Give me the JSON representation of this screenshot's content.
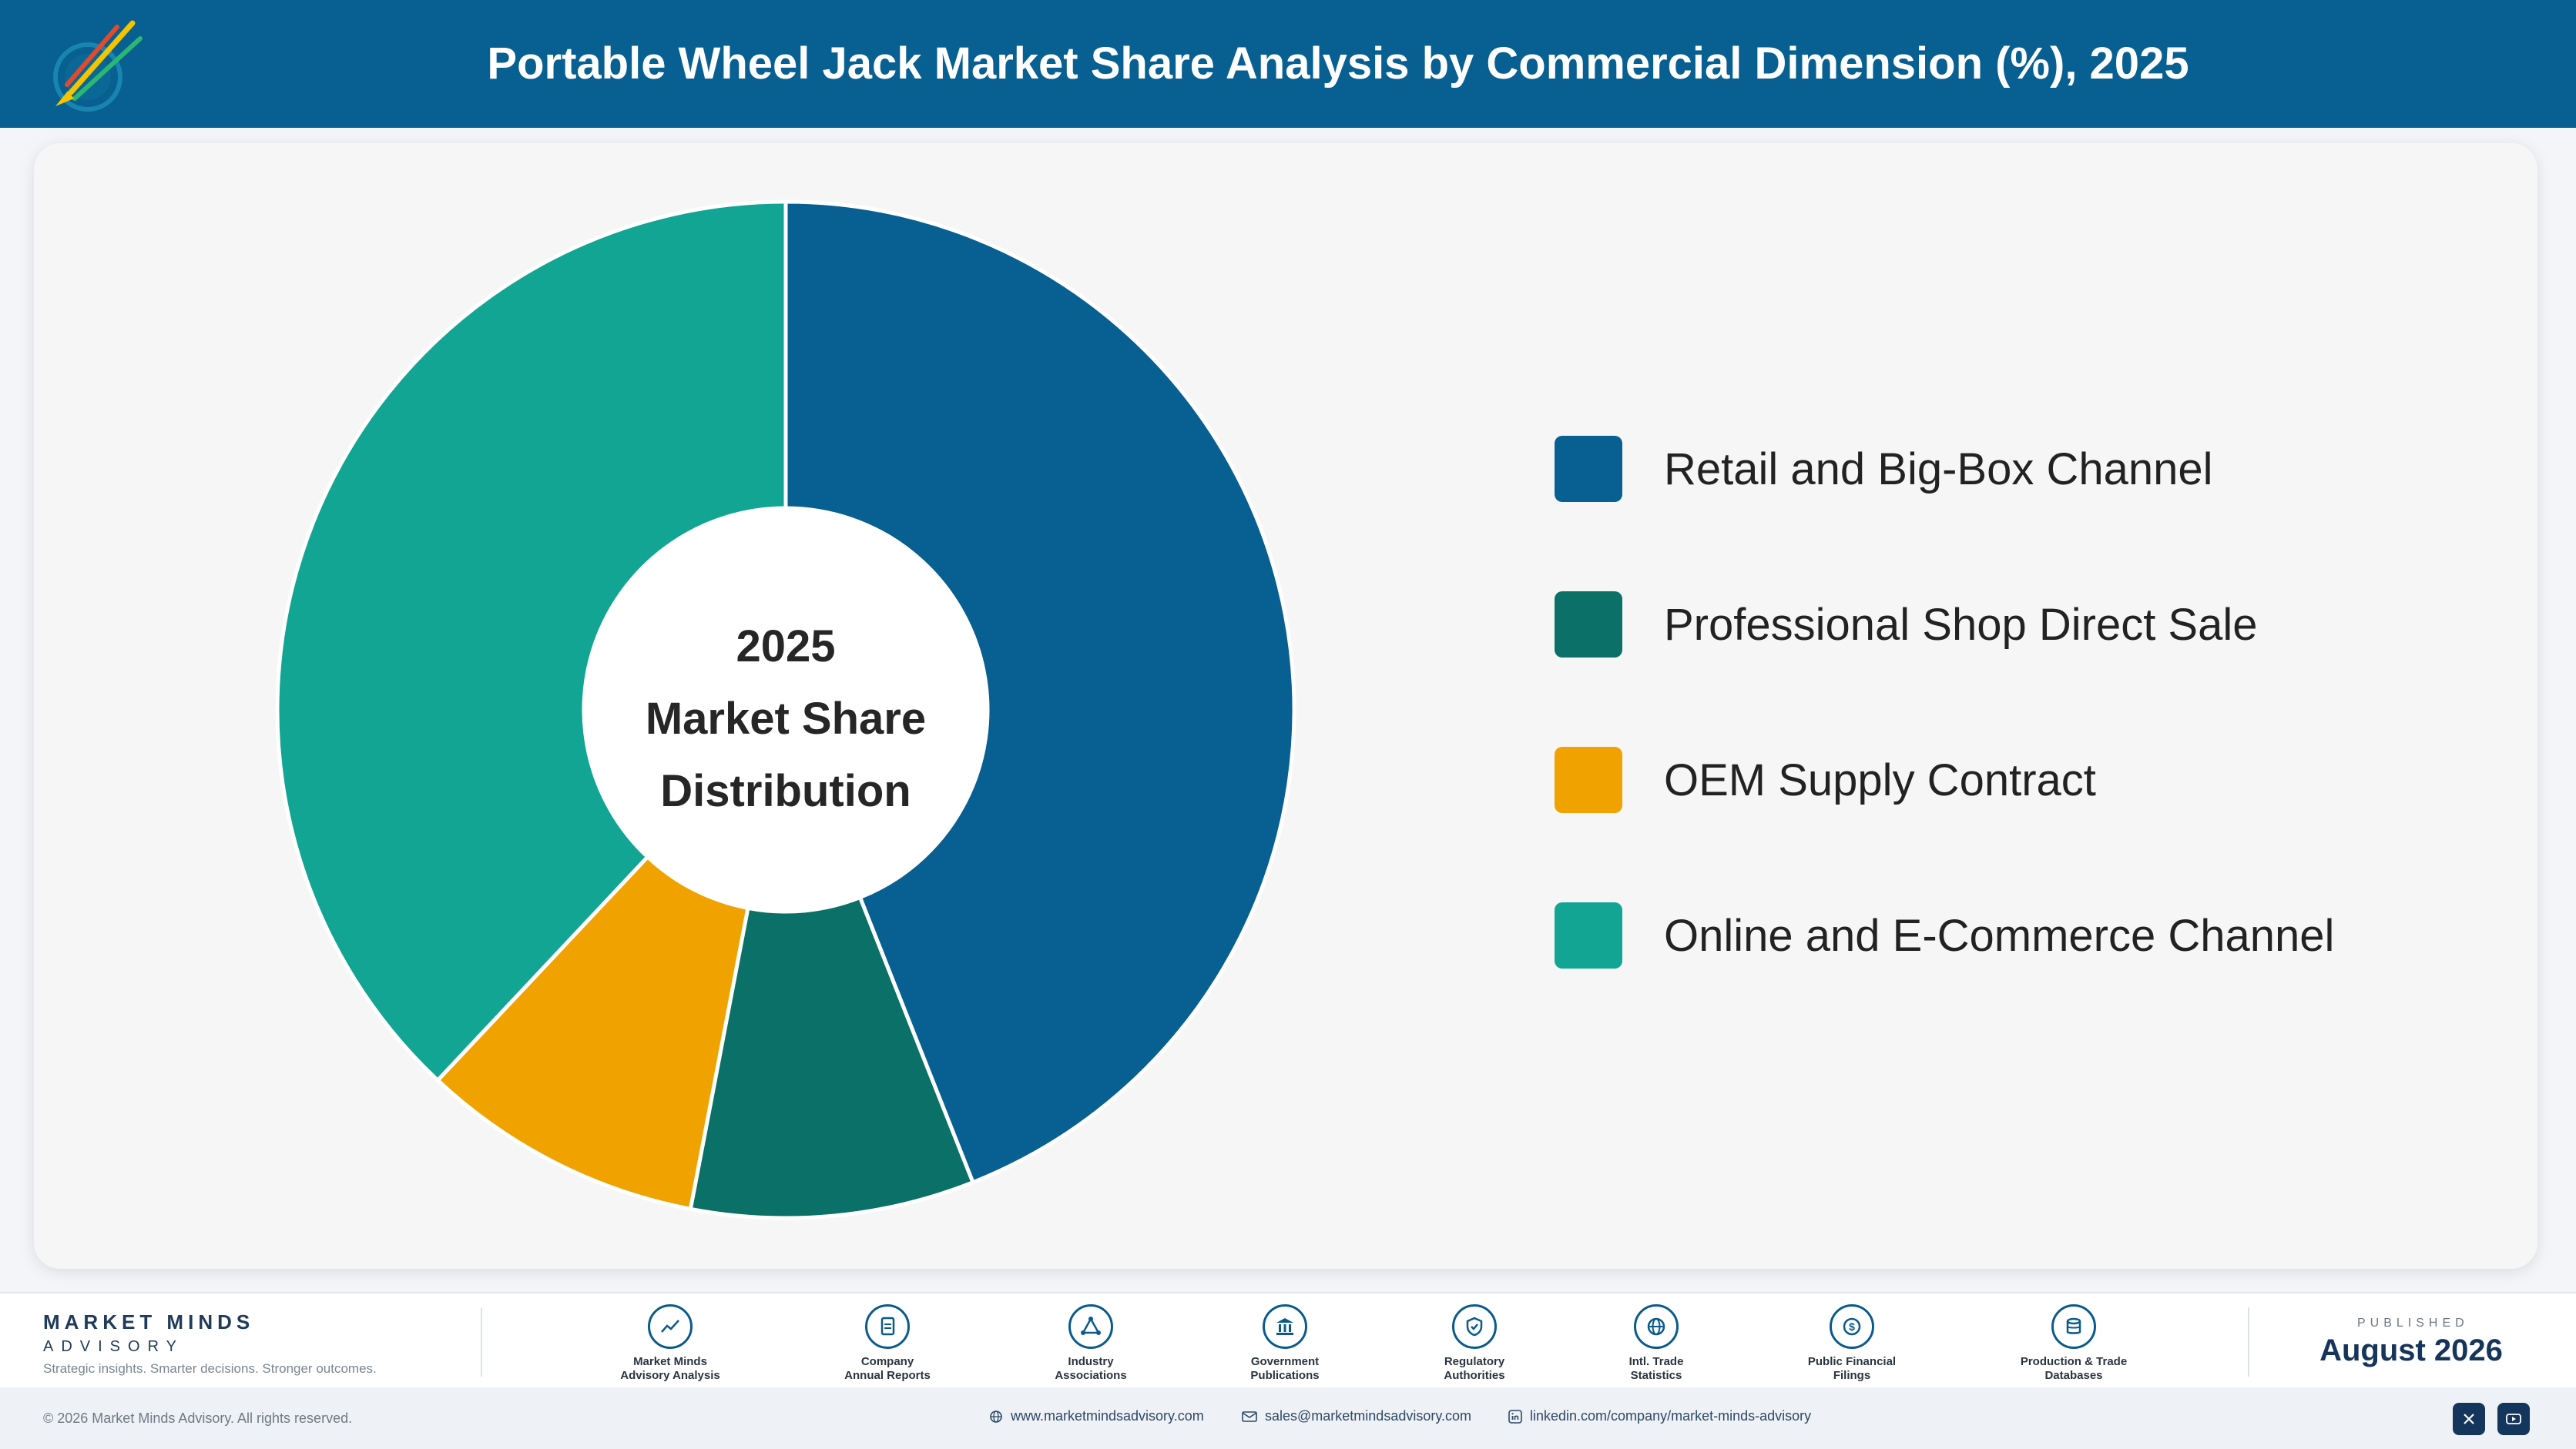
{
  "header": {
    "title": "Portable Wheel Jack Market Share Analysis by Commercial Dimension (%), 2025"
  },
  "chart_data": {
    "type": "pie",
    "title": "Portable Wheel Jack Market Share Analysis by Commercial Dimension (%), 2025",
    "center_label": [
      "2025",
      "Market Share",
      "Distribution"
    ],
    "categories": [
      "Retail and Big-Box Channel",
      "Professional Shop Direct Sale",
      "OEM Supply Contract",
      "Online and E-Commerce Channel"
    ],
    "values": [
      44,
      9,
      9,
      38
    ],
    "colors": [
      "#085f91",
      "#0b7067",
      "#f0a300",
      "#12a593"
    ],
    "legend_position": "right"
  },
  "footer": {
    "brand_name": "MARKET MINDS",
    "brand_sub": "ADVISORY",
    "tagline": "Strategic insights. Smarter decisions. Stronger outcomes.",
    "sources": [
      {
        "line1": "Market Minds",
        "line2": "Advisory Analysis",
        "icon": "trend-chart-icon"
      },
      {
        "line1": "Company",
        "line2": "Annual Reports",
        "icon": "document-icon"
      },
      {
        "line1": "Industry",
        "line2": "Associations",
        "icon": "network-icon"
      },
      {
        "line1": "Government",
        "line2": "Publications",
        "icon": "government-building-icon"
      },
      {
        "line1": "Regulatory",
        "line2": "Authorities",
        "icon": "shield-check-icon"
      },
      {
        "line1": "Intl. Trade",
        "line2": "Statistics",
        "icon": "globe-icon"
      },
      {
        "line1": "Public Financial",
        "line2": "Filings",
        "icon": "currency-coin-icon"
      },
      {
        "line1": "Production & Trade",
        "line2": "Databases",
        "icon": "database-icon"
      }
    ],
    "published_label": "PUBLISHED",
    "published_date": "August 2026"
  },
  "bottom": {
    "copyright": "© 2026 Market Minds Advisory. All rights reserved.",
    "website": "www.marketmindsadvisory.com",
    "email": "sales@marketmindsadvisory.com",
    "linkedin": "linkedin.com/company/market-minds-advisory"
  }
}
